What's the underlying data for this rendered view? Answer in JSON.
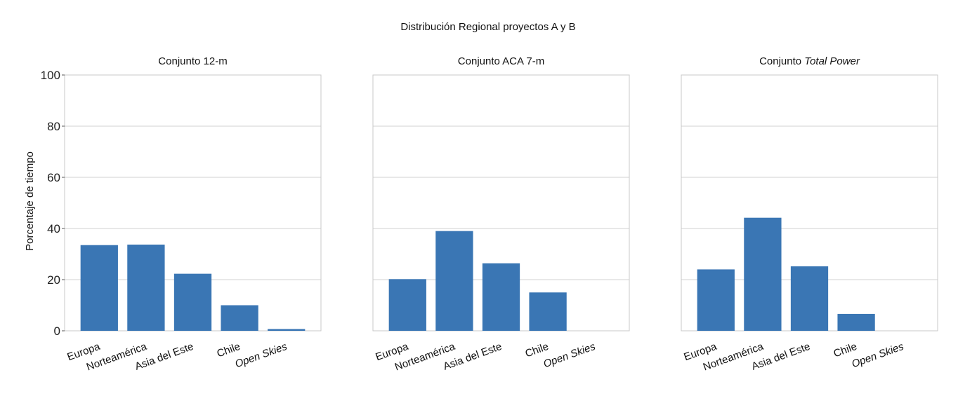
{
  "figure": {
    "title": "Distribución Regional proyectos A y B",
    "ylabel": "Porcentaje de tiempo"
  },
  "chart_data": [
    {
      "type": "bar",
      "title": "Conjunto 12-m",
      "title_parts": [
        {
          "text": "Conjunto 12-m",
          "italic": false
        }
      ],
      "categories": [
        "Europa",
        "Norteamérica",
        "Asia del Este",
        "Chile",
        "Open Skies"
      ],
      "italic_categories": [
        "Open Skies"
      ],
      "values": [
        33.5,
        33.7,
        22.3,
        10.0,
        0.7
      ],
      "ylim": [
        0,
        100
      ],
      "yticks": [
        0,
        20,
        40,
        60,
        80,
        100
      ],
      "ylabel": "Porcentaje de tiempo",
      "grid": true,
      "color": "#3a76b4"
    },
    {
      "type": "bar",
      "title": "Conjunto ACA 7-m",
      "title_parts": [
        {
          "text": "Conjunto ACA 7-m",
          "italic": false
        }
      ],
      "categories": [
        "Europa",
        "Norteamérica",
        "Asia del Este",
        "Chile",
        "Open Skies"
      ],
      "italic_categories": [
        "Open Skies"
      ],
      "values": [
        20.2,
        39.0,
        26.4,
        15.0,
        0.0
      ],
      "ylim": [
        0,
        100
      ],
      "yticks": [
        0,
        20,
        40,
        60,
        80,
        100
      ],
      "grid": true,
      "color": "#3a76b4"
    },
    {
      "type": "bar",
      "title": "Conjunto Total Power",
      "title_parts": [
        {
          "text": "Conjunto ",
          "italic": false
        },
        {
          "text": "Total Power",
          "italic": true
        }
      ],
      "categories": [
        "Europa",
        "Norteamérica",
        "Asia del Este",
        "Chile",
        "Open Skies"
      ],
      "italic_categories": [
        "Open Skies"
      ],
      "values": [
        24.0,
        44.2,
        25.2,
        6.6,
        0.0
      ],
      "ylim": [
        0,
        100
      ],
      "yticks": [
        0,
        20,
        40,
        60,
        80,
        100
      ],
      "grid": true,
      "color": "#3a76b4"
    }
  ]
}
